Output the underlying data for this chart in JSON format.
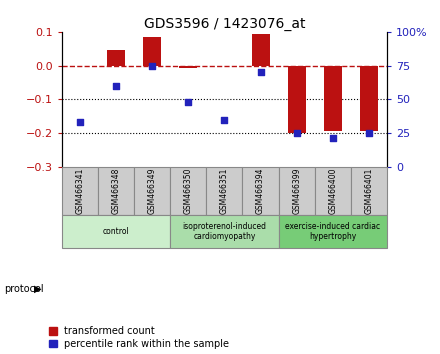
{
  "title": "GDS3596 / 1423076_at",
  "samples": [
    "GSM466341",
    "GSM466348",
    "GSM466349",
    "GSM466350",
    "GSM466351",
    "GSM466394",
    "GSM466399",
    "GSM466400",
    "GSM466401"
  ],
  "red_values": [
    0.0,
    0.045,
    0.085,
    -0.008,
    0.0,
    0.095,
    -0.2,
    -0.195,
    -0.195
  ],
  "blue_percentile": [
    33,
    60,
    75,
    48,
    35,
    70,
    25,
    21,
    25
  ],
  "red_color": "#bb1111",
  "blue_color": "#2222bb",
  "ylim_left": [
    -0.3,
    0.1
  ],
  "ylim_right": [
    0,
    100
  ],
  "yticks_left": [
    0.1,
    0.0,
    -0.1,
    -0.2,
    -0.3
  ],
  "yticks_right": [
    100,
    75,
    50,
    25,
    0
  ],
  "groups": [
    {
      "label": "control",
      "start": 0,
      "end": 3,
      "color": "#cceecc"
    },
    {
      "label": "isoproterenol-induced\ncardiomyopathy",
      "start": 3,
      "end": 6,
      "color": "#aaddaa"
    },
    {
      "label": "exercise-induced cardiac\nhypertrophy",
      "start": 6,
      "end": 9,
      "color": "#77cc77"
    }
  ],
  "protocol_label": "protocol",
  "legend1": "transformed count",
  "legend2": "percentile rank within the sample",
  "background_color": "#ffffff",
  "sample_box_color": "#cccccc",
  "sample_box_edge": "#888888"
}
